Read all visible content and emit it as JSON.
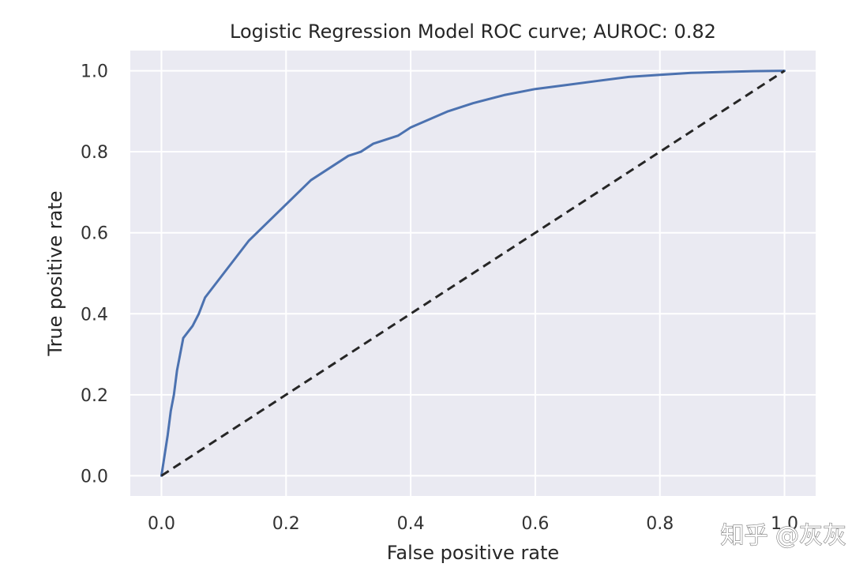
{
  "chart_data": {
    "type": "line",
    "title": "Logistic Regression Model ROC curve; AUROC: 0.82",
    "xlabel": "False positive rate",
    "ylabel": "True positive rate",
    "xlim": [
      -0.05,
      1.05
    ],
    "ylim": [
      -0.05,
      1.05
    ],
    "xticks": [
      0.0,
      0.2,
      0.4,
      0.6,
      0.8,
      1.0
    ],
    "yticks": [
      0.0,
      0.2,
      0.4,
      0.6,
      0.8,
      1.0
    ],
    "xtick_labels": [
      "0.0",
      "0.2",
      "0.4",
      "0.6",
      "0.8",
      "1.0"
    ],
    "ytick_labels": [
      "0.0",
      "0.2",
      "0.4",
      "0.6",
      "0.8",
      "1.0"
    ],
    "grid": true,
    "series": [
      {
        "color": "#4c72b0",
        "style": "solid",
        "x": [
          0.0,
          0.005,
          0.01,
          0.015,
          0.02,
          0.025,
          0.03,
          0.035,
          0.04,
          0.045,
          0.05,
          0.06,
          0.07,
          0.08,
          0.09,
          0.1,
          0.12,
          0.14,
          0.16,
          0.18,
          0.2,
          0.22,
          0.24,
          0.26,
          0.28,
          0.3,
          0.32,
          0.34,
          0.36,
          0.38,
          0.4,
          0.43,
          0.46,
          0.5,
          0.55,
          0.6,
          0.65,
          0.7,
          0.75,
          0.8,
          0.85,
          0.9,
          0.95,
          1.0
        ],
        "y": [
          0.0,
          0.05,
          0.1,
          0.16,
          0.2,
          0.26,
          0.3,
          0.34,
          0.35,
          0.36,
          0.37,
          0.4,
          0.44,
          0.46,
          0.48,
          0.5,
          0.54,
          0.58,
          0.61,
          0.64,
          0.67,
          0.7,
          0.73,
          0.75,
          0.77,
          0.79,
          0.8,
          0.82,
          0.83,
          0.84,
          0.86,
          0.88,
          0.9,
          0.92,
          0.94,
          0.955,
          0.965,
          0.975,
          0.985,
          0.99,
          0.995,
          0.997,
          0.999,
          1.0
        ]
      },
      {
        "color": "#262626",
        "style": "dashed",
        "x": [
          0.0,
          1.0
        ],
        "y": [
          0.0,
          1.0
        ]
      }
    ],
    "colors": {
      "plot_background": "#eaeaf2",
      "grid": "#ffffff"
    }
  },
  "watermark": "知乎 @灰灰"
}
